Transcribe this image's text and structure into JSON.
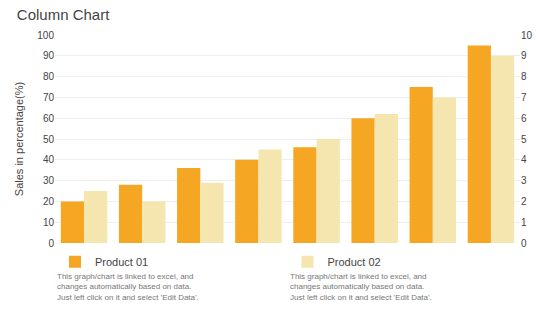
{
  "chart_data": {
    "type": "bar",
    "title": "Column Chart",
    "ylabel": "Sales in percentage(%)",
    "categories": [
      null,
      null,
      null,
      null,
      null,
      null,
      null,
      null
    ],
    "series": [
      {
        "name": "Product 01",
        "color": "#F5A623",
        "values": [
          20,
          28,
          36,
          40,
          46,
          60,
          75,
          95
        ]
      },
      {
        "name": "Product 02",
        "color": "#F5E6B0",
        "values": [
          25,
          20,
          29,
          45,
          50,
          62,
          70,
          90
        ]
      }
    ],
    "ylim": [
      0,
      100
    ],
    "yticks": [
      0,
      10,
      20,
      30,
      40,
      50,
      60,
      70,
      80,
      90,
      100
    ],
    "y2lim": [
      0,
      10
    ],
    "y2ticks": [
      0,
      1,
      2,
      3,
      4,
      5,
      6,
      7,
      8,
      9,
      10
    ],
    "grid": true,
    "legend": "bottom",
    "tick_labels": "y",
    "annotations": [
      "This graph/chart is linked to excel, and\nchanges automatically based on data.\nJust left click on it and select 'Edit Data'.",
      "This graph/chart is linked to excel, and\nchanges automatically based on data.\nJust left click on it and select 'Edit Data'."
    ]
  }
}
